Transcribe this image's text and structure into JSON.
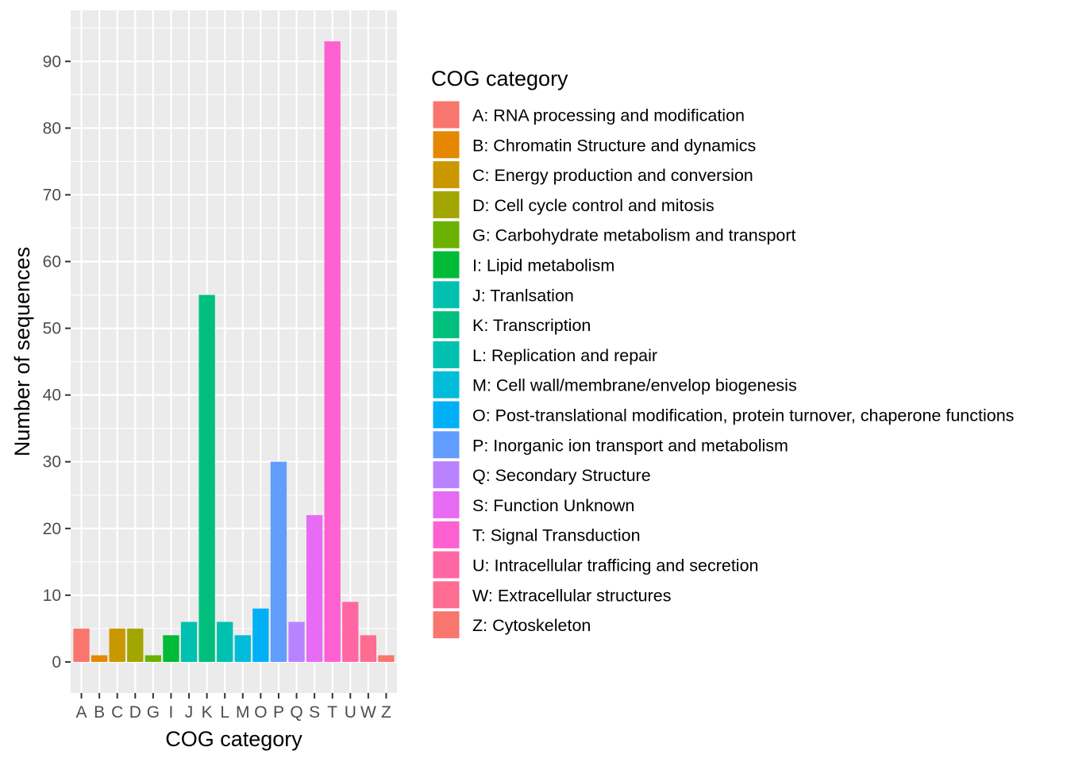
{
  "chart_data": {
    "type": "bar",
    "xlabel": "COG category",
    "ylabel": "Number of sequences",
    "ylim": [
      -4.65,
      97.65
    ],
    "yticks": [
      0,
      10,
      20,
      30,
      40,
      50,
      60,
      70,
      80,
      90
    ],
    "grid": true,
    "legend_position": "right",
    "legend_title": "COG category",
    "categories": [
      "A",
      "B",
      "C",
      "D",
      "G",
      "I",
      "J",
      "K",
      "L",
      "M",
      "O",
      "P",
      "Q",
      "S",
      "T",
      "U",
      "W",
      "Z"
    ],
    "values": [
      5,
      1,
      5,
      5,
      1,
      4,
      6,
      55,
      6,
      4,
      8,
      30,
      6,
      22,
      93,
      9,
      4,
      1
    ],
    "legend_labels": [
      "A: RNA processing and modification",
      "B: Chromatin Structure and dynamics",
      "C: Energy production and conversion",
      "D: Cell cycle control and mitosis",
      "G: Carbohydrate metabolism and transport",
      "I: Lipid metabolism",
      "J: Tranlsation",
      "K: Transcription",
      "L: Replication and repair",
      "M: Cell wall/membrane/envelop biogenesis",
      "O: Post-translational modification, protein turnover, chaperone functions",
      "P: Inorganic ion transport and metabolism",
      "Q: Secondary Structure",
      "S: Function Unknown",
      "T: Signal Transduction",
      "U: Intracellular trafficing and secretion",
      "W: Extracellular structures",
      "Z: Cytoskeleton"
    ],
    "colors": [
      "#F8766D",
      "#E58700",
      "#C99800",
      "#A3A500",
      "#6BB100",
      "#00BA38",
      "#00C0AF",
      "#00BF7D",
      "#00C0AF",
      "#00BCD8",
      "#00B0F6",
      "#619CFF",
      "#B983FF",
      "#E76BF3",
      "#FD61D1",
      "#FF67A4",
      "#FF6C91",
      "#F8766D"
    ]
  }
}
